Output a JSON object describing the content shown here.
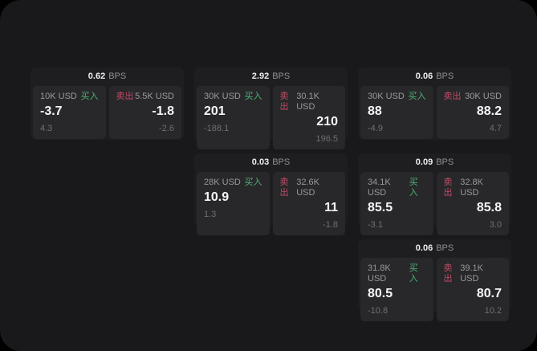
{
  "labels": {
    "bps_unit": "BPS",
    "buy": "买入",
    "sell": "卖出"
  },
  "colors": {
    "buy": "#4fb076",
    "sell": "#c24a67",
    "surface": "#19191b",
    "card": "#1e1e20",
    "panel": "#28282a"
  },
  "cards": [
    {
      "bps": "0.62",
      "col": 0,
      "row": 0,
      "buy": {
        "amount": "10K USD",
        "main": "-3.7",
        "sub": "4.3"
      },
      "sell": {
        "amount": "5.5K USD",
        "main": "-1.8",
        "sub": "-2.6"
      }
    },
    {
      "bps": "2.92",
      "col": 1,
      "row": 0,
      "buy": {
        "amount": "30K USD",
        "main": "201",
        "sub": "-188.1"
      },
      "sell": {
        "amount": "30.1K USD",
        "main": "210",
        "sub": "196.5"
      }
    },
    {
      "bps": "0.06",
      "col": 2,
      "row": 0,
      "buy": {
        "amount": "30K USD",
        "main": "88",
        "sub": "-4.9"
      },
      "sell": {
        "amount": "30K USD",
        "main": "88.2",
        "sub": "4.7"
      }
    },
    {
      "bps": "0.03",
      "col": 1,
      "row": 1,
      "buy": {
        "amount": "28K USD",
        "main": "10.9",
        "sub": "1.3"
      },
      "sell": {
        "amount": "32.6K USD",
        "main": "11",
        "sub": "-1.8"
      }
    },
    {
      "bps": "0.09",
      "col": 2,
      "row": 1,
      "buy": {
        "amount": "34.1K USD",
        "main": "85.5",
        "sub": "-3.1"
      },
      "sell": {
        "amount": "32.8K USD",
        "main": "85.8",
        "sub": "3.0"
      }
    },
    {
      "bps": "0.06",
      "col": 2,
      "row": 2,
      "buy": {
        "amount": "31.8K USD",
        "main": "80.5",
        "sub": "-10.8"
      },
      "sell": {
        "amount": "39.1K USD",
        "main": "80.7",
        "sub": "10.2"
      }
    }
  ]
}
